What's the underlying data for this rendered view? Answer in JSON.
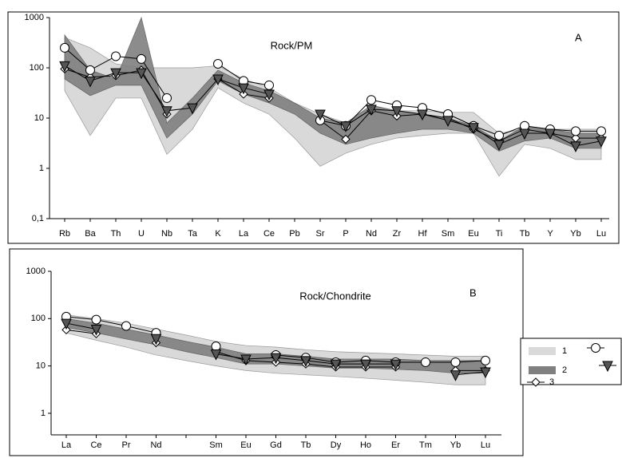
{
  "chart_data": [
    {
      "type": "spider",
      "annotation": "Rock/PM",
      "panel_label": "A",
      "log_scale": true,
      "categories": [
        "Rb",
        "Ba",
        "Th",
        "U",
        "Nb",
        "Ta",
        "K",
        "La",
        "Ce",
        "Pb",
        "Sr",
        "P",
        "Nd",
        "Zr",
        "Hf",
        "Sm",
        "Eu",
        "Ti",
        "Tb",
        "Y",
        "Yb",
        "Lu"
      ],
      "ylim": [
        0.1,
        1000
      ],
      "yticks": [
        {
          "value": 0.1,
          "label": "0,1"
        },
        1,
        10,
        100,
        1000
      ],
      "series": [
        {
          "name": "1",
          "kind": "band",
          "color": "#d9d9d9",
          "upper": [
            400,
            250,
            120,
            100,
            100,
            100,
            110,
            60,
            40,
            20,
            12,
            8,
            14,
            14,
            14,
            13,
            13,
            5,
            6,
            6,
            6,
            6
          ],
          "lower": [
            35,
            4.5,
            25,
            25,
            1.9,
            6,
            40,
            20,
            12,
            4,
            1.1,
            2,
            3,
            4,
            4.5,
            5,
            5,
            0.7,
            3,
            2.5,
            1.5,
            1.5
          ]
        },
        {
          "name": "2",
          "kind": "band",
          "color": "#808080",
          "upper": [
            450,
            90,
            60,
            1000,
            8,
            25,
            90,
            50,
            35,
            20,
            10,
            8,
            18,
            14,
            12,
            10,
            7,
            3.5,
            7,
            6,
            5,
            5
          ],
          "lower": [
            60,
            28,
            45,
            45,
            4,
            12,
            55,
            30,
            20,
            12,
            5,
            3,
            4,
            5,
            6,
            6,
            5,
            2.2,
            3.5,
            4,
            2.5,
            2.5
          ]
        },
        {
          "name": "3",
          "kind": "line",
          "marker": "diamond",
          "color": "#ffffff",
          "values": [
            95,
            65,
            70,
            90,
            12,
            null,
            60,
            30,
            25,
            null,
            9,
            3.8,
            14,
            11,
            12,
            10,
            6,
            3.5,
            6,
            5,
            4,
            4
          ]
        },
        {
          "kind": "line",
          "marker": "circle",
          "color": "#ffffff",
          "values": [
            250,
            90,
            170,
            150,
            25,
            null,
            120,
            55,
            45,
            null,
            9,
            7,
            23,
            18,
            16,
            12,
            7,
            4.5,
            7,
            6,
            5.5,
            5.5
          ]
        },
        {
          "kind": "line",
          "marker": "triangle",
          "color": "#555555",
          "values": [
            110,
            55,
            80,
            80,
            14,
            16,
            60,
            40,
            30,
            null,
            12,
            7,
            15,
            14,
            12,
            9,
            6.5,
            3,
            5,
            5,
            2.8,
            3.5
          ]
        }
      ]
    },
    {
      "type": "spider",
      "annotation": "Rock/Chondrite",
      "panel_label": "B",
      "log_scale": true,
      "legend": "right",
      "categories": [
        "La",
        "Ce",
        "Pr",
        "Nd",
        null,
        "Sm",
        "Eu",
        "Gd",
        "Tb",
        "Dy",
        "Ho",
        "Er",
        "Tm",
        "Yb",
        "Lu"
      ],
      "ylim": [
        0.35,
        1000
      ],
      "yticks": [
        1,
        10,
        100,
        1000
      ],
      "series": [
        {
          "name": "1",
          "kind": "band",
          "color": "#d9d9d9",
          "upper": [
            120,
            100,
            80,
            60,
            45,
            33,
            27,
            25,
            22,
            20,
            19,
            18,
            17,
            16,
            16
          ],
          "lower": [
            50,
            35,
            25,
            17,
            13,
            10,
            8,
            7,
            6.5,
            6,
            5.5,
            5,
            4.5,
            4,
            4
          ]
        },
        {
          "name": "2",
          "kind": "band",
          "color": "#808080",
          "upper": [
            100,
            80,
            60,
            45,
            33,
            25,
            18,
            18,
            16,
            14,
            14,
            14,
            13,
            13,
            13
          ],
          "lower": [
            65,
            50,
            37,
            28,
            20,
            15,
            11,
            11,
            10,
            9,
            9,
            8.5,
            8,
            7,
            7
          ]
        },
        {
          "name": "3",
          "kind": "line",
          "marker": "diamond",
          "color": "#ffffff",
          "values": [
            58,
            48,
            null,
            31,
            null,
            20,
            13,
            12,
            11,
            9.5,
            9.5,
            9.5,
            null,
            8,
            8
          ]
        },
        {
          "kind": "line",
          "marker": "circle",
          "color": "#ffffff",
          "values": [
            110,
            95,
            70,
            50,
            null,
            26,
            null,
            17,
            15,
            12,
            13,
            12,
            12,
            12,
            13
          ]
        },
        {
          "kind": "line",
          "marker": "triangle",
          "color": "#555555",
          "values": [
            80,
            60,
            null,
            38,
            null,
            18,
            14,
            15,
            13,
            11,
            11,
            11,
            null,
            6.5,
            7.5
          ]
        }
      ]
    }
  ]
}
